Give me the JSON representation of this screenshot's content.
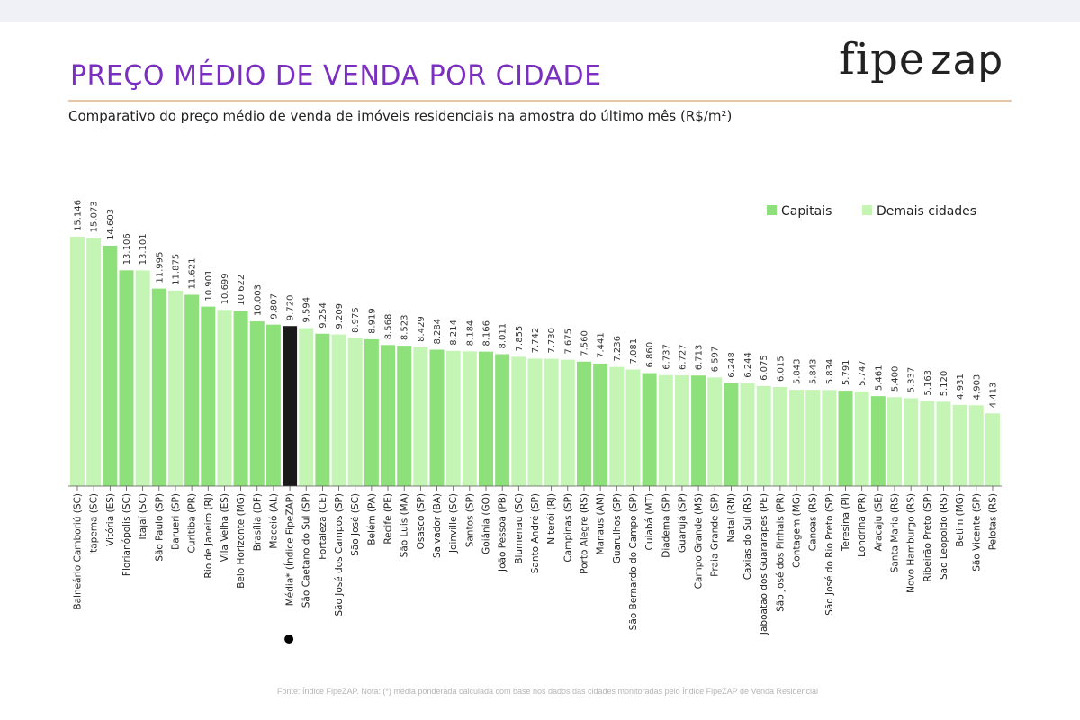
{
  "header": {
    "title": "PREÇO MÉDIO DE VENDA POR CIDADE",
    "subtitle": "Comparativo do preço médio de venda de imóveis residenciais na amostra do último mês (R$/m²)",
    "logo_part1": "fipe",
    "logo_part2": "zap"
  },
  "footer": {
    "note": "Fonte: Índice FipeZAP. Nota: (*) média ponderada calculada com base nos dados das cidades monitoradas pelo Índice FipeZAP de Venda Residencial"
  },
  "colors": {
    "capital": "#8ee07a",
    "other": "#c5f5b5",
    "average": "#1a1a1a",
    "title": "#7b2fc1"
  },
  "chart_data": {
    "type": "bar",
    "legend": [
      {
        "key": "capital",
        "label": "Capitais"
      },
      {
        "key": "other",
        "label": "Demais cidades"
      }
    ],
    "legend_position": "top-right",
    "grid": false,
    "ylim": [
      0,
      16000
    ],
    "categories": [
      "Balneário Camboriú (SC)",
      "Itapema (SC)",
      "Vitória (ES)",
      "Florianópolis (SC)",
      "Itajaí (SC)",
      "São Paulo (SP)",
      "Barueri (SP)",
      "Curitiba (PR)",
      "Rio de Janeiro (RJ)",
      "Vila Velha (ES)",
      "Belo Horizonte (MG)",
      "Brasília (DF)",
      "Maceió (AL)",
      "Média* (Índice FipeZAP)",
      "São Caetano do Sul (SP)",
      "Fortaleza (CE)",
      "São José dos Campos (SP)",
      "São José (SC)",
      "Belém (PA)",
      "Recife (PE)",
      "São Luís (MA)",
      "Osasco (SP)",
      "Salvador (BA)",
      "Joinville (SC)",
      "Santos (SP)",
      "Goiânia (GO)",
      "João Pessoa (PB)",
      "Blumenau (SC)",
      "Santo André (SP)",
      "Niterói (RJ)",
      "Campinas (SP)",
      "Porto Alegre (RS)",
      "Manaus (AM)",
      "Guarulhos (SP)",
      "São Bernardo do Campo (SP)",
      "Cuiabá (MT)",
      "Diadema (SP)",
      "Guarujá (SP)",
      "Campo Grande (MS)",
      "Praia Grande (SP)",
      "Natal (RN)",
      "Caxias do Sul (RS)",
      "Jaboatão dos Guararapes (PE)",
      "São José dos Pinhais (PR)",
      "Contagem (MG)",
      "Canoas (RS)",
      "São José do Rio Preto (SP)",
      "Teresina (PI)",
      "Londrina (PR)",
      "Aracaju (SE)",
      "Santa Maria (RS)",
      "Novo Hamburgo (RS)",
      "Ribeirão Preto (SP)",
      "São Leopoldo (RS)",
      "Betim (MG)",
      "São Vicente (SP)",
      "Pelotas (RS)"
    ],
    "values": [
      15146,
      15073,
      14603,
      13106,
      13101,
      11995,
      11875,
      11621,
      10901,
      10699,
      10622,
      10003,
      9807,
      9720,
      9594,
      9254,
      9209,
      8975,
      8919,
      8568,
      8523,
      8429,
      8284,
      8214,
      8184,
      8166,
      8011,
      7855,
      7742,
      7730,
      7675,
      7560,
      7441,
      7236,
      7081,
      6860,
      6737,
      6727,
      6713,
      6597,
      6248,
      6244,
      6075,
      6015,
      5843,
      5843,
      5834,
      5791,
      5747,
      5461,
      5400,
      5337,
      5163,
      5120,
      4931,
      4903,
      4413
    ],
    "labels": [
      "15.146",
      "15.073",
      "14.603",
      "13.106",
      "13.101",
      "11.995",
      "11.875",
      "11.621",
      "10.901",
      "10.699",
      "10.622",
      "10.003",
      "9.807",
      "9.720",
      "9.594",
      "9.254",
      "9.209",
      "8.975",
      "8.919",
      "8.568",
      "8.523",
      "8.429",
      "8.284",
      "8.214",
      "8.184",
      "8.166",
      "8.011",
      "7.855",
      "7.742",
      "7.730",
      "7.675",
      "7.560",
      "7.441",
      "7.236",
      "7.081",
      "6.860",
      "6.737",
      "6.727",
      "6.713",
      "6.597",
      "6.248",
      "6.244",
      "6.075",
      "6.015",
      "5.843",
      "5.843",
      "5.834",
      "5.791",
      "5.747",
      "5.461",
      "5.400",
      "5.337",
      "5.163",
      "5.120",
      "4.931",
      "4.903",
      "4.413"
    ],
    "groups": [
      "other",
      "other",
      "capital",
      "capital",
      "other",
      "capital",
      "other",
      "capital",
      "capital",
      "other",
      "capital",
      "capital",
      "capital",
      "average",
      "other",
      "capital",
      "other",
      "other",
      "capital",
      "capital",
      "capital",
      "other",
      "capital",
      "other",
      "other",
      "capital",
      "capital",
      "other",
      "other",
      "other",
      "other",
      "capital",
      "capital",
      "other",
      "other",
      "capital",
      "other",
      "other",
      "capital",
      "other",
      "capital",
      "other",
      "other",
      "other",
      "other",
      "other",
      "other",
      "capital",
      "other",
      "capital",
      "other",
      "other",
      "other",
      "other",
      "other",
      "other",
      "other"
    ]
  }
}
